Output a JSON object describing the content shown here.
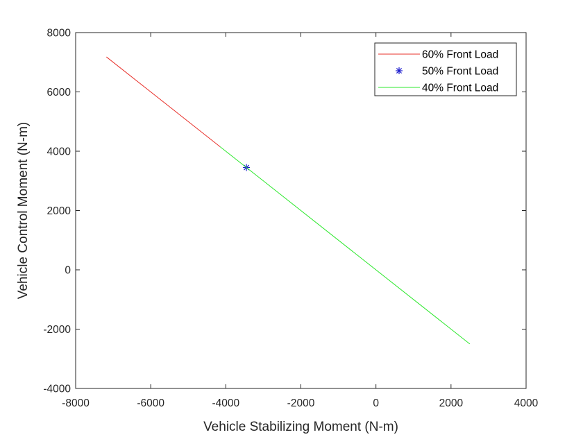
{
  "chart_data": {
    "type": "line",
    "title": "",
    "xlabel": "Vehicle Stabilizing Moment (N-m)",
    "ylabel": "Vehicle Control Moment (N-m)",
    "xlim": [
      -8000,
      4000
    ],
    "ylim": [
      -4000,
      8000
    ],
    "xticks": [
      -8000,
      -6000,
      -4000,
      -2000,
      0,
      2000,
      4000
    ],
    "yticks": [
      -4000,
      -2000,
      0,
      2000,
      4000,
      6000,
      8000
    ],
    "xtick_labels": [
      "-8000",
      "-6000",
      "-4000",
      "-2000",
      "0",
      "2000",
      "4000"
    ],
    "ytick_labels": [
      "-4000",
      "-2000",
      "0",
      "2000",
      "4000",
      "6000",
      "8000"
    ],
    "grid": false,
    "legend_position": "top-right",
    "series": [
      {
        "name": "60% Front Load",
        "style": "line",
        "color": "#e8302a",
        "x": [
          -7180,
          -4150
        ],
        "y": [
          7180,
          4150
        ]
      },
      {
        "name": "50% Front Load",
        "style": "marker",
        "marker": "asterisk",
        "color": "#1a1acd",
        "x": [
          -3450
        ],
        "y": [
          3450
        ]
      },
      {
        "name": "40% Front Load",
        "style": "line",
        "color": "#2ee82e",
        "x": [
          -4150,
          2500
        ],
        "y": [
          4150,
          -2500
        ]
      }
    ]
  }
}
